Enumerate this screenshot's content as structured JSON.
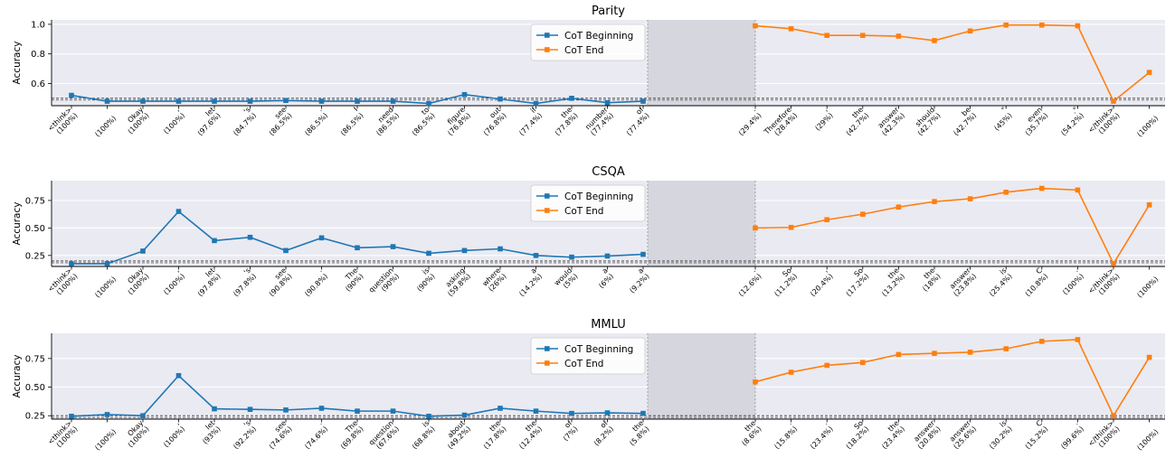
{
  "legend": {
    "series_a": "CoT Beginning",
    "series_b": "CoT End"
  },
  "colors": {
    "cot_beginning": "#1f77b4",
    "cot_end": "#ff7f0e"
  },
  "chart_data": [
    {
      "type": "line",
      "title": "Parity",
      "ylabel": "Accuracy",
      "ylim": [
        0.45,
        1.03
      ],
      "yticks": [
        "0.6",
        "0.8",
        "1.0"
      ],
      "baseline": 0.5,
      "grid": true,
      "legend_position": "top-center",
      "beginning": {
        "tokens": [
          "<think>\n(100%)",
          "\n(100%)",
          "Okay\n(100%)",
          ",\n(100%)",
          "let\n(97.6%)",
          "'s\n(84.7%)",
          "see\n(86.5%)",
          ".\n(86.5%)",
          "I\n(86.5%)",
          "need\n(86.5%)",
          "to\n(86.5%)",
          "figure\n(76.8%)",
          "out\n(76.8%)",
          "if\n(77.4%)",
          "the\n(77.8%)",
          "number\n(77.4%)",
          "of\n(77.4%)"
        ],
        "values": [
          0.52,
          0.48,
          0.48,
          0.48,
          0.48,
          0.48,
          0.485,
          0.48,
          0.48,
          0.48,
          0.465,
          0.525,
          0.495,
          0.465,
          0.5,
          0.47,
          0.48
        ]
      },
      "end": {
        "tokens": [
          ".\n(29.4%)",
          "Therefore\n(28.4%)",
          ",\n(29%)",
          "the\n(42.7%)",
          "answer\n(42.3%)",
          "should\n(42.7%)",
          "be\n(42.7%)",
          "\"\n(45%)",
          "even\n(35.7%)",
          ".\"\n(54.2%)",
          "</think>\n(100%)",
          "\n(100%)"
        ],
        "values": [
          0.99,
          0.97,
          0.925,
          0.925,
          0.92,
          0.89,
          0.955,
          0.995,
          0.995,
          0.99,
          0.48,
          0.675
        ]
      }
    },
    {
      "type": "line",
      "title": "CSQA",
      "ylabel": "Accuracy",
      "ylim": [
        0.15,
        0.93
      ],
      "yticks": [
        "0.25",
        "0.50",
        "0.75"
      ],
      "baseline": 0.2,
      "grid": true,
      "legend_position": "top-center",
      "beginning": {
        "tokens": [
          "<think>\n(100%)",
          "\n(100%)",
          "Okay\n(100%)",
          ",\n(100%)",
          "let\n(97.8%)",
          "'s\n(97.8%)",
          "see\n(90.8%)",
          ".\n(90.8%)",
          "The\n(90%)",
          "question\n(90%)",
          "is\n(90%)",
          "asking\n(59.8%)",
          "where\n(26%)",
          "a\n(14.2%)",
          "would\n(5%)",
          "a\n(6%)",
          "a\n(9.2%)"
        ],
        "values": [
          0.175,
          0.175,
          0.29,
          0.65,
          0.385,
          0.415,
          0.295,
          0.41,
          0.32,
          0.33,
          0.27,
          0.295,
          0.31,
          0.25,
          0.235,
          0.245,
          0.26
        ]
      },
      "end": {
        "tokens": [
          ".\n(12.6%)",
          "So\n(11.2%)",
          ",\n(20.4%)",
          "So\n(17.2%)",
          "the\n(13.2%)",
          "the\n(18%)",
          "answer\n(23.8%)",
          "is\n(25.4%)",
          "C\n(10.8%)",
          ".\n(100%)",
          "</think>\n(100%)",
          "\n(100%)"
        ],
        "values": [
          0.5,
          0.505,
          0.575,
          0.625,
          0.69,
          0.74,
          0.765,
          0.825,
          0.86,
          0.845,
          0.175,
          0.71
        ]
      }
    },
    {
      "type": "line",
      "title": "MMLU",
      "ylabel": "Accuracy",
      "ylim": [
        0.22,
        0.97
      ],
      "yticks": [
        "0.25",
        "0.50",
        "0.75"
      ],
      "baseline": 0.25,
      "grid": true,
      "legend_position": "top-center",
      "beginning": {
        "tokens": [
          "<think>\n(100%)",
          "\n(100%)",
          "Okay\n(100%)",
          ",\n(100%)",
          "let\n(93%)",
          "'s\n(92.2%)",
          "see\n(74.6%)",
          ".\n(74.6%)",
          "The\n(69.8%)",
          "question\n(67.6%)",
          "is\n(68.8%)",
          "about\n(49.2%)",
          "the\n(17.8%)",
          "the\n(12.4%)",
          "of\n(7%)",
          "of\n(8.2%)",
          "the\n(5.8%)"
        ],
        "values": [
          0.245,
          0.26,
          0.25,
          0.6,
          0.31,
          0.305,
          0.3,
          0.315,
          0.29,
          0.29,
          0.245,
          0.255,
          0.315,
          0.29,
          0.27,
          0.275,
          0.27
        ]
      },
      "end": {
        "tokens": [
          "the\n(8.6%)",
          ".\n(15.8%)",
          ".\n(23.4%)",
          "So\n(18.2%)",
          "the\n(23.4%)",
          "answer\n(20.8%)",
          "answer\n(25.6%)",
          "is\n(30.2%)",
          "C\n(15.2%)",
          ".\n(99.6%)",
          "</think>\n(100%)",
          "\n(100%)"
        ],
        "values": [
          0.545,
          0.63,
          0.69,
          0.715,
          0.785,
          0.795,
          0.805,
          0.835,
          0.9,
          0.915,
          0.25,
          0.76
        ]
      }
    }
  ]
}
